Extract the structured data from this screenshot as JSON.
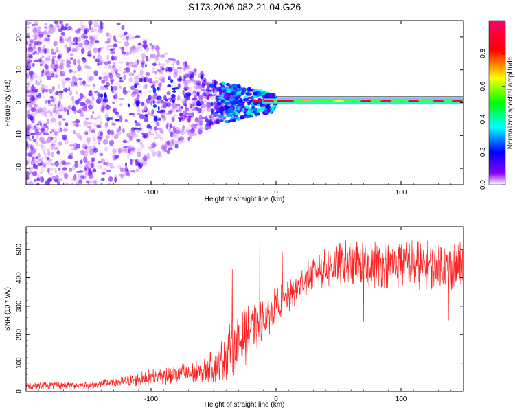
{
  "title": "S173.2026.082.21.04.G26",
  "chart_data": [
    {
      "type": "heatmap",
      "description_kind": "spectrogram",
      "xlabel": "Height of straight line (km)",
      "ylabel": "Frequency (Hz)",
      "xlim": [
        -200,
        150
      ],
      "ylim": [
        -25,
        25
      ],
      "xticks": [
        -100,
        0,
        100
      ],
      "yticks": [
        -20,
        -10,
        0,
        10,
        20
      ],
      "colorbar": {
        "label": "Normalized spectral amplitude",
        "range": [
          0.0,
          1.0
        ],
        "ticks": [
          0.0,
          0.2,
          0.4,
          0.6,
          0.8
        ],
        "tick_labels": [
          "0.0",
          "0.2",
          "0.4",
          "0.6",
          "0.8"
        ],
        "colormap": [
          "#ffffff",
          "#8800ff",
          "#0000ff",
          "#00ffff",
          "#00ff00",
          "#ffff00",
          "#ff0000",
          "#ff0066"
        ]
      },
      "ridge": {
        "x_start": 0,
        "x_end": 150,
        "frequency_hz": 0.5,
        "peak_amplitude": 0.9
      }
    },
    {
      "type": "line",
      "xlabel": "Height of straight line (km)",
      "ylabel": "SNR (10 * v/v)",
      "xlim": [
        -200,
        150
      ],
      "ylim": [
        0,
        580
      ],
      "xticks": [
        -100,
        0,
        100
      ],
      "yticks": [
        0,
        100,
        200,
        300,
        400,
        500
      ],
      "line_color": "#ff2020",
      "envelope": {
        "x": [
          -200,
          -150,
          -120,
          -100,
          -80,
          -60,
          -45,
          -38,
          -30,
          -20,
          -10,
          0,
          10,
          20,
          30,
          45,
          60,
          80,
          100,
          120,
          150
        ],
        "mean": [
          20,
          22,
          35,
          50,
          60,
          65,
          100,
          150,
          170,
          210,
          250,
          300,
          330,
          380,
          420,
          440,
          450,
          450,
          450,
          445,
          440
        ],
        "spread": [
          15,
          12,
          20,
          30,
          40,
          45,
          70,
          110,
          100,
          100,
          80,
          70,
          60,
          60,
          60,
          80,
          90,
          90,
          90,
          90,
          90
        ]
      },
      "spikes": [
        {
          "x": -35,
          "value": 430
        },
        {
          "x": -13,
          "value": 520
        },
        {
          "x": 5,
          "value": 490
        },
        {
          "x": 70,
          "value": 245
        },
        {
          "x": 138,
          "value": 250
        }
      ]
    }
  ]
}
